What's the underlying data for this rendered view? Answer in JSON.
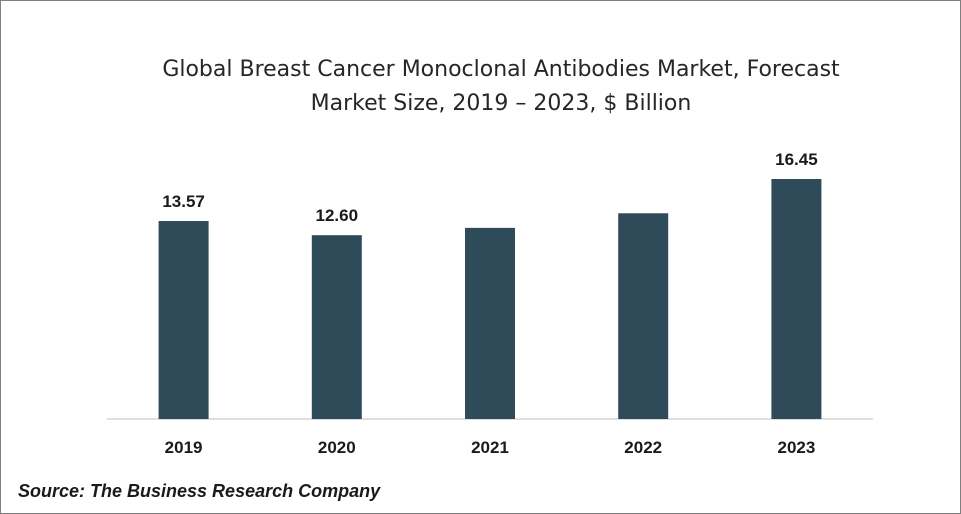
{
  "chart_data": {
    "type": "bar",
    "title_line1": "Global Breast Cancer Monoclonal Antibodies Market, Forecast",
    "title_line2": "Market Size, 2019 – 2023, $ Billion",
    "categories": [
      "2019",
      "2020",
      "2021",
      "2022",
      "2023"
    ],
    "values": [
      13.57,
      12.6,
      13.1,
      14.1,
      16.45
    ],
    "data_labels": [
      "13.57",
      "12.60",
      "",
      "",
      "16.45"
    ],
    "xlabel": "",
    "ylabel": "",
    "ylim": [
      0,
      16.45
    ],
    "grid": false,
    "legend": "none",
    "bar_color": "#2f4b5a",
    "axis_color": "#bfbfbf"
  },
  "source": "Source: The Business Research Company"
}
